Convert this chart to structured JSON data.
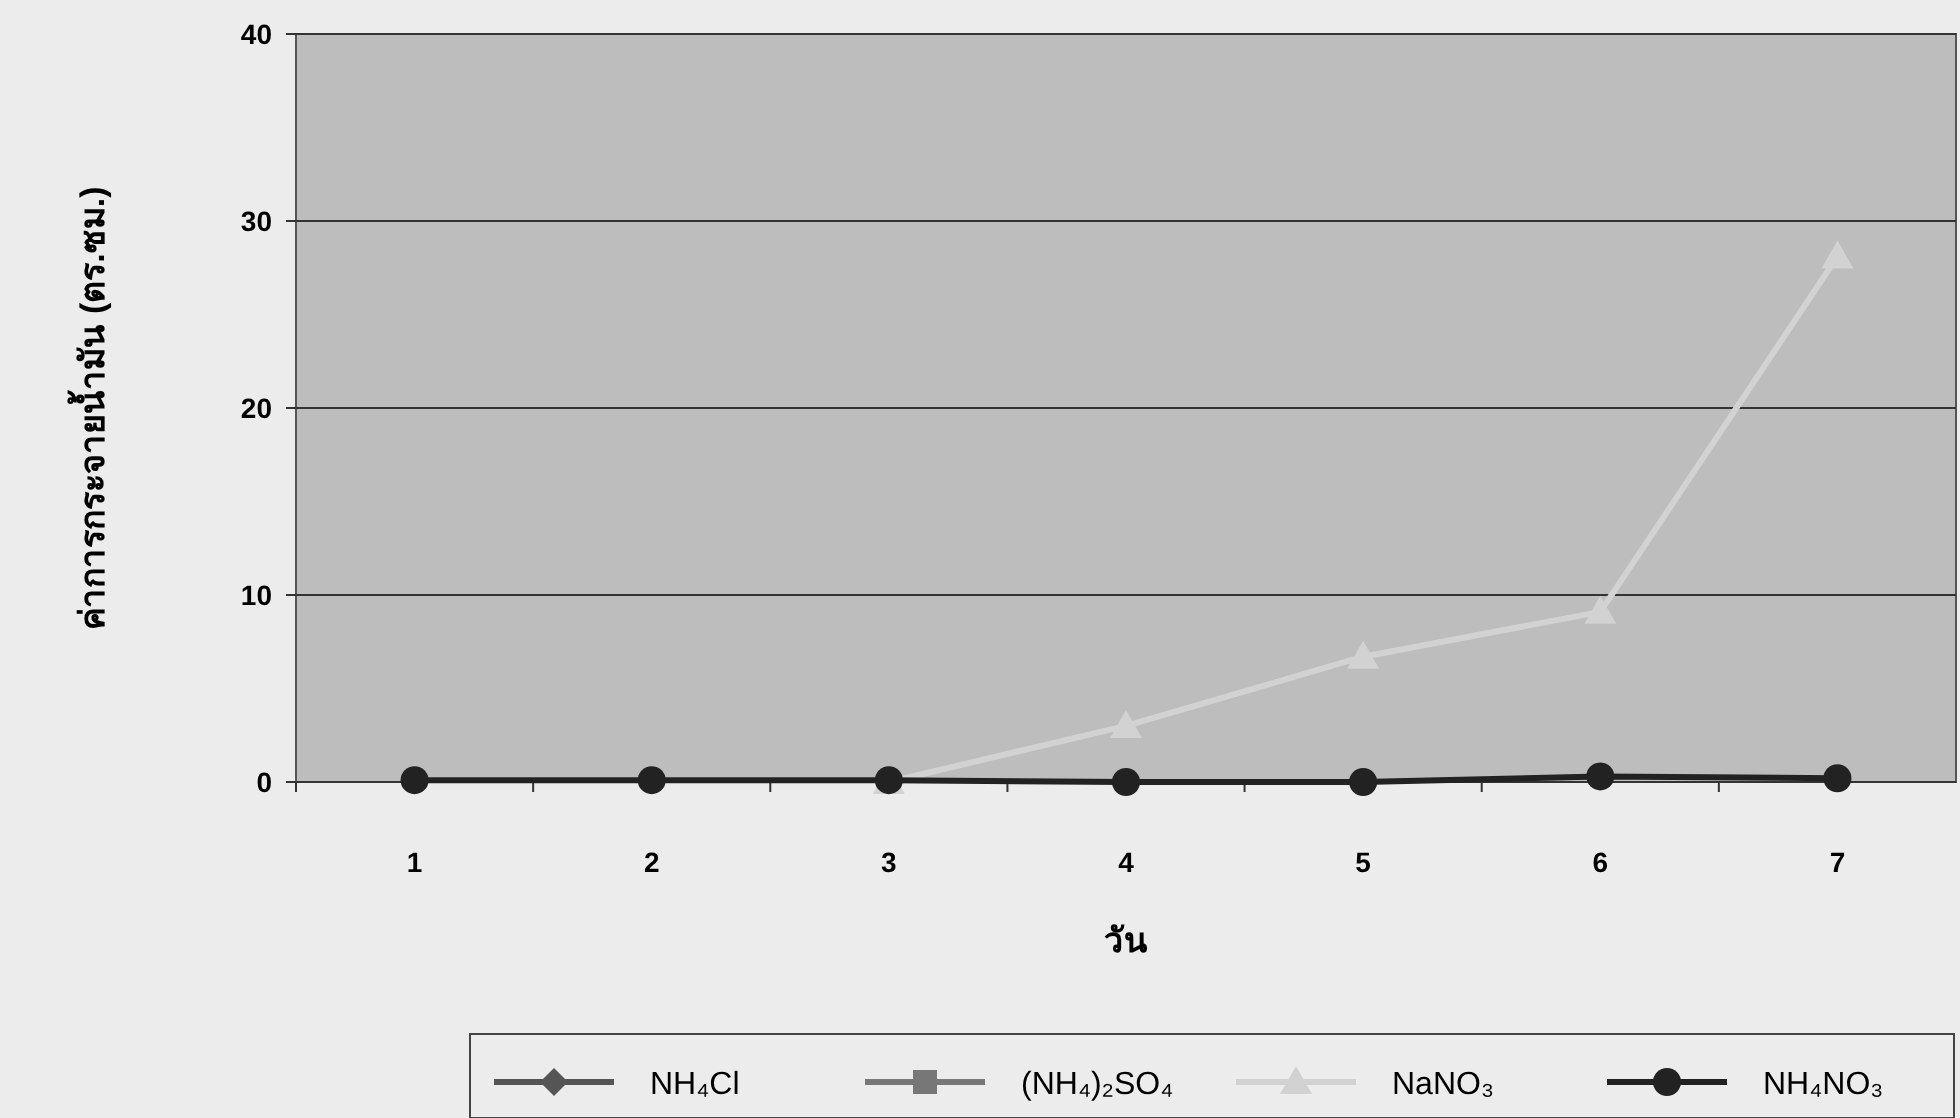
{
  "chart_data": {
    "type": "line",
    "xlabel": "วัน",
    "ylabel": "ค่าการกระจายน้ำมัน (ตร.ซม.)",
    "categories": [
      "1",
      "2",
      "3",
      "4",
      "5",
      "6",
      "7"
    ],
    "series": [
      {
        "name": "NH₄Cl",
        "color": "#555555",
        "marker": "diamond",
        "values": [
          null,
          null,
          null,
          null,
          null,
          null,
          null
        ]
      },
      {
        "name": "(NH₄)₂SO₄",
        "color": "#777777",
        "marker": "square",
        "values": [
          null,
          null,
          null,
          null,
          null,
          null,
          null
        ]
      },
      {
        "name": "NaNO₃",
        "color": "#d2d2d2",
        "marker": "triangle",
        "values": [
          null,
          null,
          0,
          3,
          6.7,
          9.1,
          28.1
        ]
      },
      {
        "name": "NH₄NO₃",
        "color": "#222222",
        "marker": "circle",
        "values": [
          0.1,
          0.1,
          0.1,
          0,
          0,
          0.3,
          0.2
        ]
      }
    ],
    "ylim": [
      0,
      40
    ],
    "yticks": [
      0,
      10,
      20,
      30,
      40
    ],
    "grid": "y",
    "legend": "bottom",
    "line_style": "solid"
  }
}
